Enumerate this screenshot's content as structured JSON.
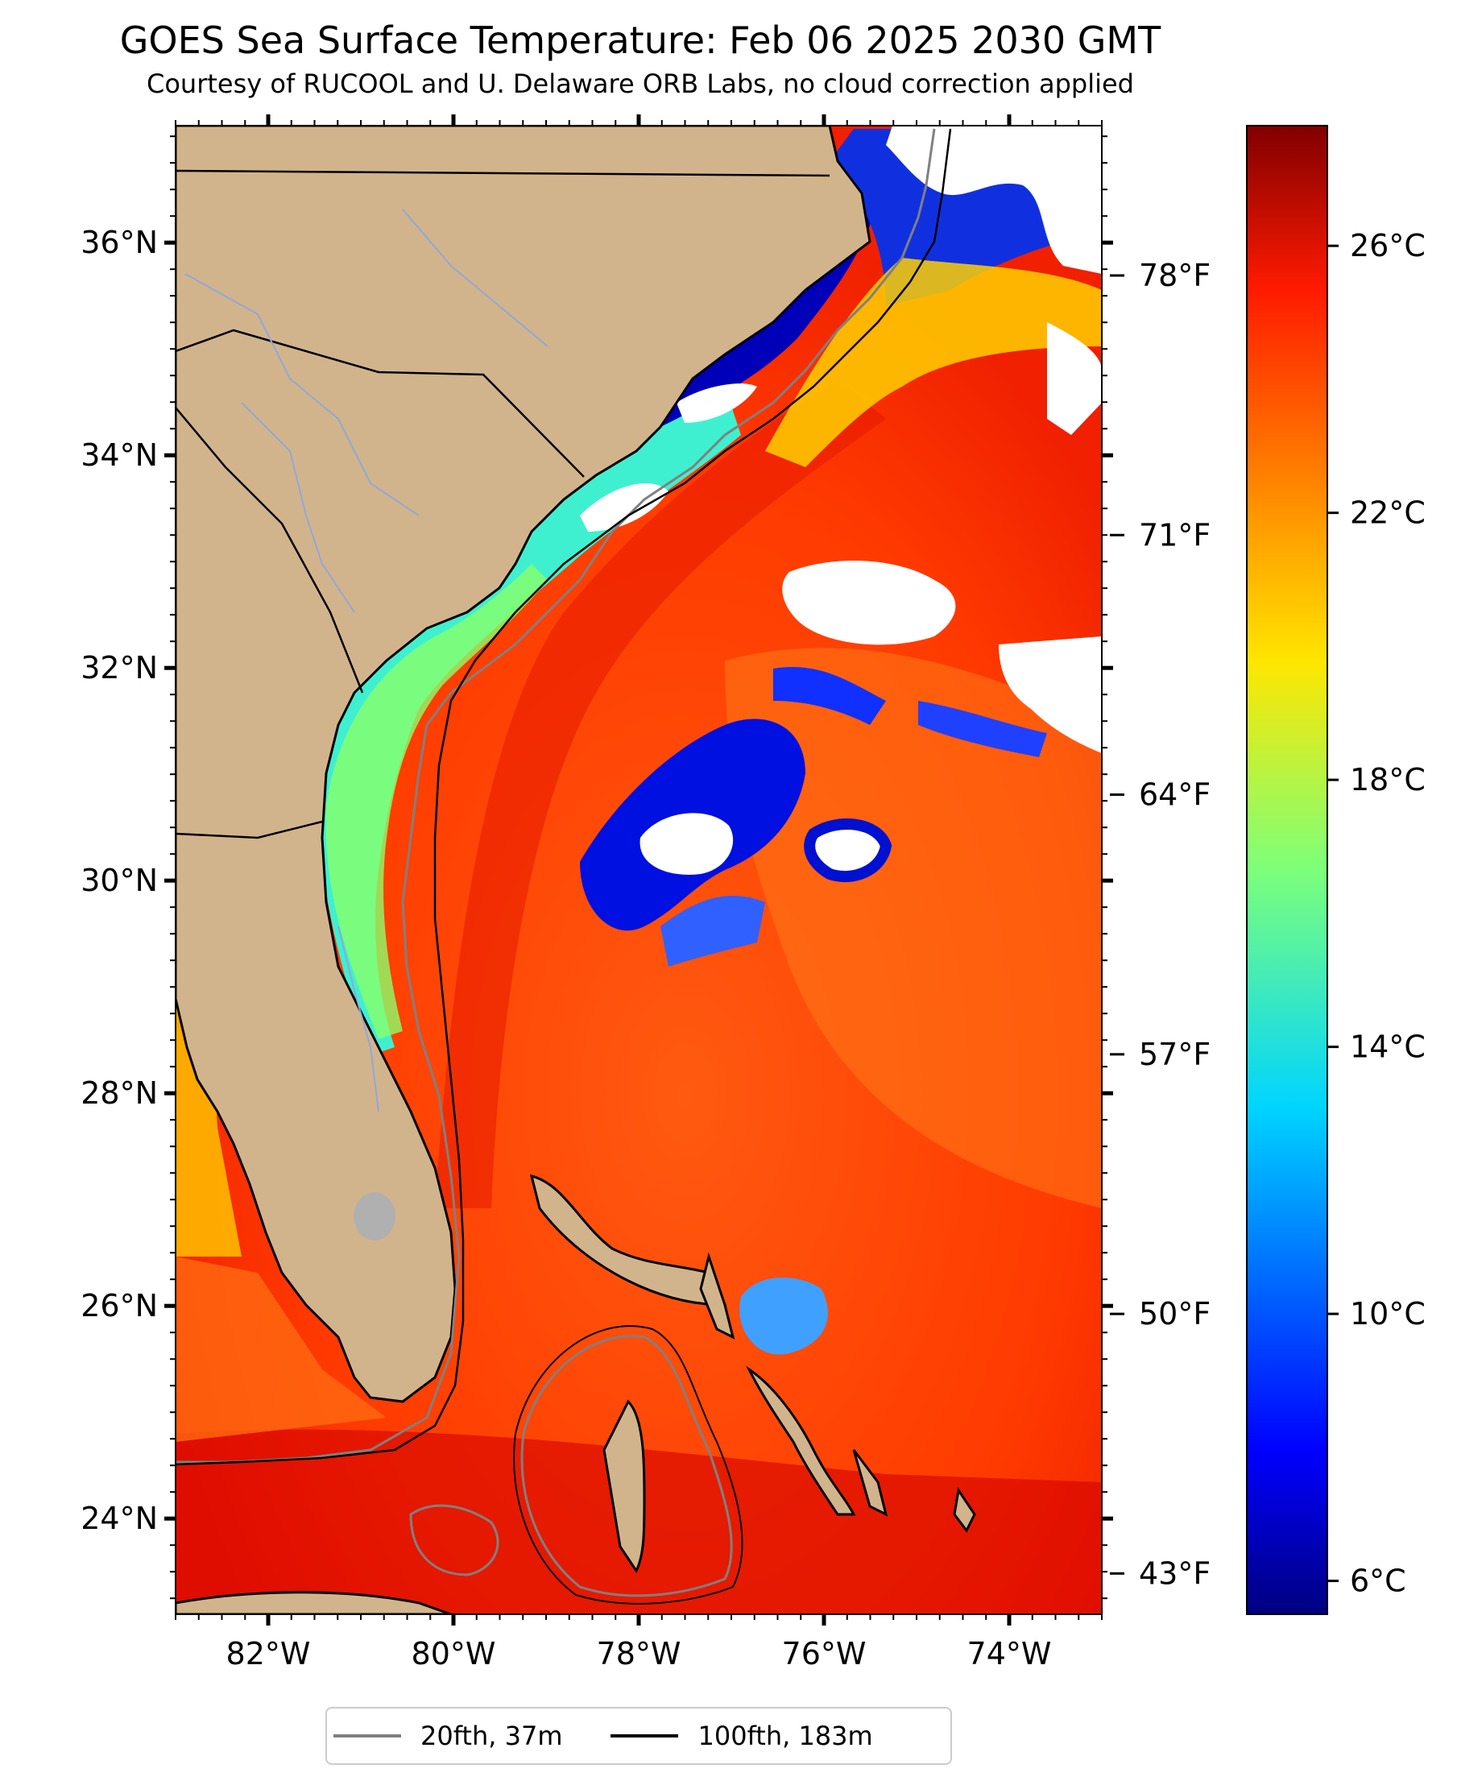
{
  "header": {
    "title": "GOES Sea Surface Temperature: Feb 06 2025 2030 GMT",
    "subtitle": "Courtesy of RUCOOL and U. Delaware ORB Labs, no cloud correction applied"
  },
  "map": {
    "lon_range": [
      -83,
      -73
    ],
    "lat_range": [
      23.1,
      37.1
    ],
    "lat_ticks": [
      {
        "value": 24,
        "label": "24°N"
      },
      {
        "value": 26,
        "label": "26°N"
      },
      {
        "value": 28,
        "label": "28°N"
      },
      {
        "value": 30,
        "label": "30°N"
      },
      {
        "value": 32,
        "label": "32°N"
      },
      {
        "value": 34,
        "label": "34°N"
      },
      {
        "value": 36,
        "label": "36°N"
      }
    ],
    "lon_ticks": [
      {
        "value": -82,
        "label": "82°W"
      },
      {
        "value": -80,
        "label": "80°W"
      },
      {
        "value": -78,
        "label": "78°W"
      },
      {
        "value": -76,
        "label": "76°W"
      },
      {
        "value": -74,
        "label": "74°W"
      }
    ],
    "land_color": "#d2b48c",
    "ocean_warm_color": "#ff3300"
  },
  "fahrenheit_scale": {
    "ticks": [
      {
        "value": 43,
        "label": "43°F"
      },
      {
        "value": 50,
        "label": "50°F"
      },
      {
        "value": 57,
        "label": "57°F"
      },
      {
        "value": 64,
        "label": "64°F"
      },
      {
        "value": 71,
        "label": "71°F"
      },
      {
        "value": 78,
        "label": "78°F"
      }
    ]
  },
  "colorbar": {
    "min_c": 5.5,
    "max_c": 27.8,
    "ticks": [
      {
        "value": 6,
        "label": "6°C"
      },
      {
        "value": 10,
        "label": "10°C"
      },
      {
        "value": 14,
        "label": "14°C"
      },
      {
        "value": 18,
        "label": "18°C"
      },
      {
        "value": 22,
        "label": "22°C"
      },
      {
        "value": 26,
        "label": "26°C"
      }
    ]
  },
  "legend": {
    "items": [
      {
        "label": "20fth, 37m",
        "color": "#808080"
      },
      {
        "label": "100fth, 183m",
        "color": "#000000"
      }
    ]
  }
}
